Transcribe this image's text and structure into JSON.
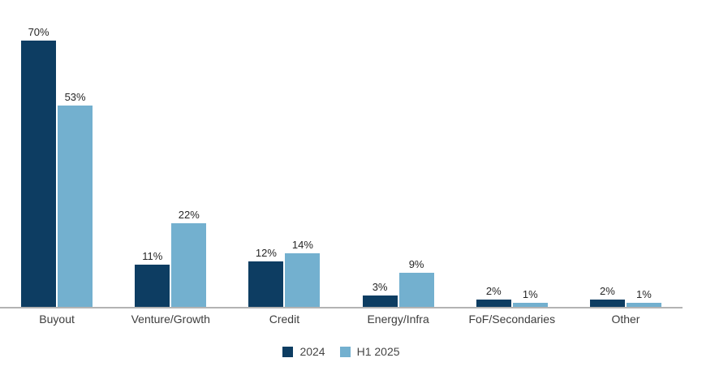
{
  "chart_data": {
    "type": "bar",
    "title": "",
    "xlabel": "",
    "ylabel": "",
    "categories": [
      "Buyout",
      "Venture/Growth",
      "Credit",
      "Energy/Infra",
      "FoF/Secondaries",
      "Other"
    ],
    "series": [
      {
        "name": "2024",
        "color": "#0d3d62",
        "values": [
          70,
          11,
          12,
          3,
          2,
          2
        ],
        "labels": [
          "70%",
          "11%",
          "12%",
          "3%",
          "2%",
          "2%"
        ]
      },
      {
        "name": "H1 2025",
        "color": "#73b0cf",
        "values": [
          53,
          22,
          14,
          9,
          1,
          1
        ],
        "labels": [
          "53%",
          "22%",
          "14%",
          "9%",
          "1%",
          "1%"
        ]
      }
    ],
    "value_suffix": "%",
    "ylim": [
      0,
      80
    ],
    "grid": false,
    "legend_position": "bottom-center",
    "axis_line_color": "#b3b3b3"
  },
  "legend": {
    "items": [
      {
        "label": "2024",
        "color": "#0d3d62"
      },
      {
        "label": "H1 2025",
        "color": "#73b0cf"
      }
    ]
  }
}
